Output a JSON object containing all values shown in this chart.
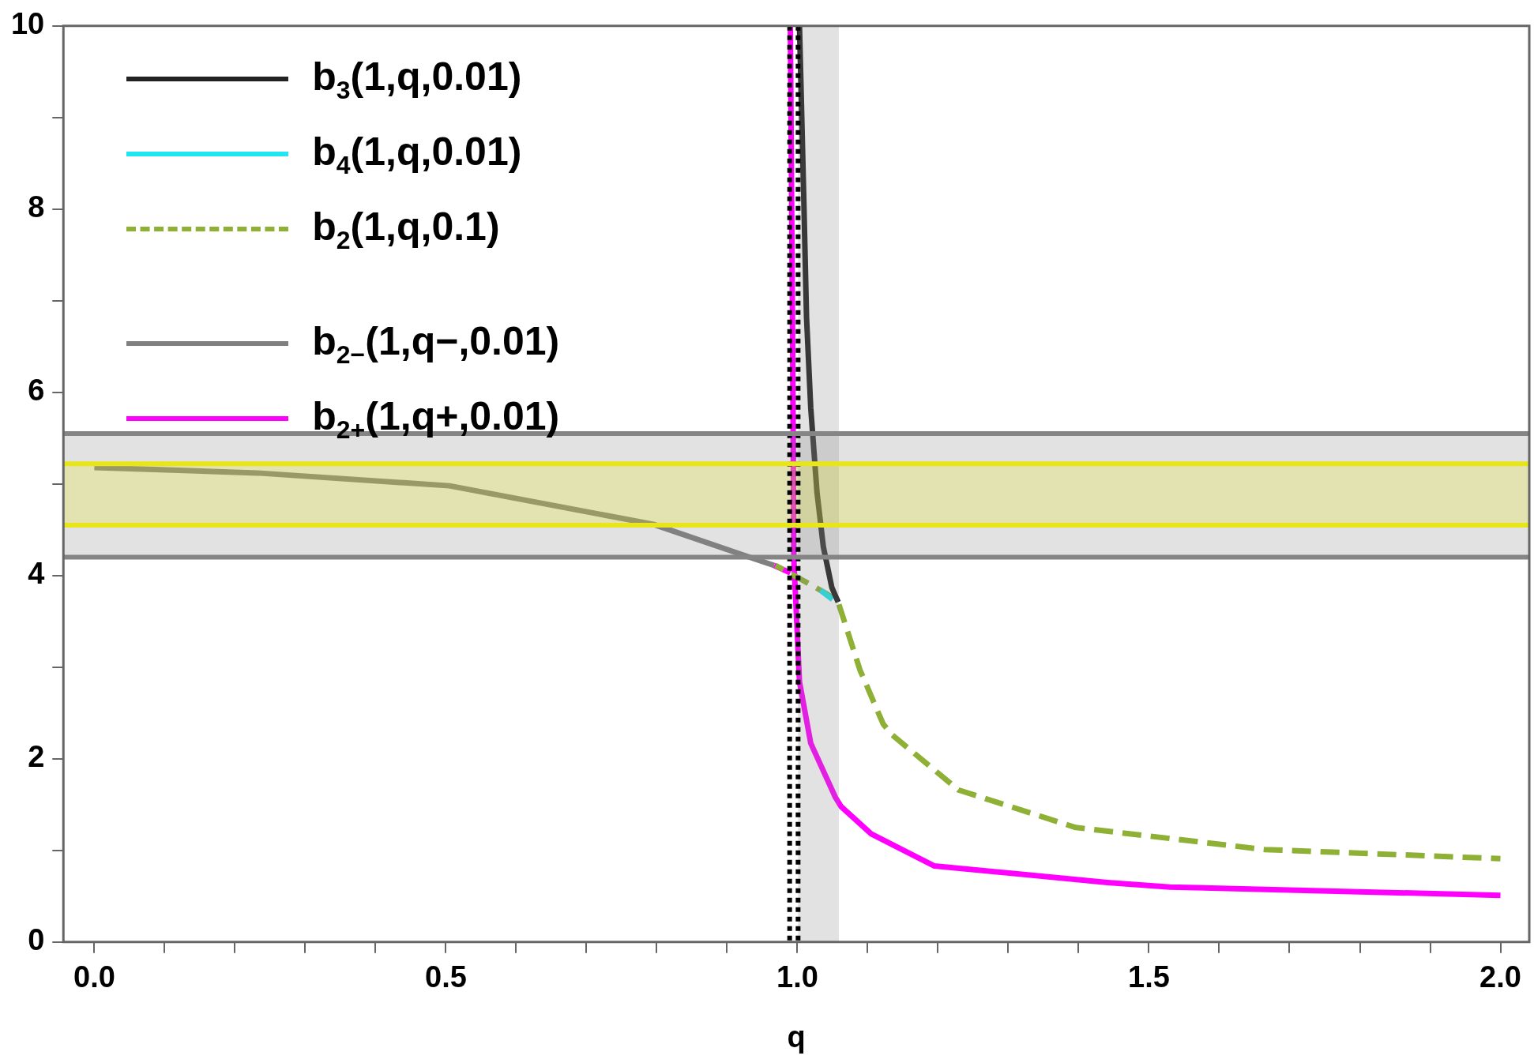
{
  "chart_data": {
    "type": "line",
    "xlabel": "q",
    "xlim": [
      -0.044,
      2.041
    ],
    "ylim": [
      0,
      10
    ],
    "xticks": [
      {
        "value": 0,
        "label": "0.0"
      },
      {
        "value": 0.1,
        "label": null
      },
      {
        "value": 0.2,
        "label": null
      },
      {
        "value": 0.3,
        "label": null
      },
      {
        "value": 0.4,
        "label": null
      },
      {
        "value": 0.5,
        "label": "0.5"
      },
      {
        "value": 0.6,
        "label": null
      },
      {
        "value": 0.7,
        "label": null
      },
      {
        "value": 0.8,
        "label": null
      },
      {
        "value": 0.9,
        "label": null
      },
      {
        "value": 1,
        "label": "1.0"
      },
      {
        "value": 1.1,
        "label": null
      },
      {
        "value": 1.2,
        "label": null
      },
      {
        "value": 1.3,
        "label": null
      },
      {
        "value": 1.4,
        "label": null
      },
      {
        "value": 1.5,
        "label": "1.5"
      },
      {
        "value": 1.6,
        "label": null
      },
      {
        "value": 1.7,
        "label": null
      },
      {
        "value": 1.8,
        "label": null
      },
      {
        "value": 1.9,
        "label": null
      },
      {
        "value": 2,
        "label": "2.0"
      }
    ],
    "yticks": [
      0,
      {
        "value": 1,
        "label": null
      },
      2,
      {
        "value": 3,
        "label": null
      },
      4,
      {
        "value": 5,
        "label": null
      },
      6,
      {
        "value": 7,
        "label": null
      },
      8,
      {
        "value": 9,
        "label": null
      },
      10
    ],
    "grid": false,
    "legend": "top left",
    "series": [
      {
        "name": "b$_{3}$(1,q,0.01)",
        "color": "#222222",
        "x": [
          1.003,
          1.009,
          1.013,
          1.019,
          1.028,
          1.037,
          1.049,
          1.058
        ],
        "values": [
          10,
          8.15,
          6.82,
          5.83,
          4.9,
          4.31,
          3.87,
          3.71
        ]
      },
      {
        "name": "b$_{4}$(1,q,0.01)",
        "color": "#1fe6f0",
        "x": [
          1.033,
          1.05
        ],
        "values": [
          3.84,
          3.74
        ]
      },
      {
        "name": "b$_{2}$(1,q,0.1)",
        "color": "#8db035",
        "line_style": "dashed",
        "x": [
          0.969,
          1.012,
          1.042,
          1.058,
          1.089,
          1.122,
          1.135,
          1.229,
          1.396,
          1.664,
          2.0
        ],
        "values": [
          4.11,
          3.93,
          3.8,
          3.71,
          2.97,
          2.38,
          2.26,
          1.66,
          1.25,
          1.01,
          0.91
        ]
      },
      {
        "name": "b$_{2−}$(1,q−,0.01)",
        "color": "#808080",
        "x": [
          0,
          0.232,
          0.505,
          0.795,
          0.936,
          0.967
        ],
        "values": [
          5.18,
          5.12,
          4.98,
          4.56,
          4.19,
          4.11
        ]
      },
      {
        "name": "b$_{2+}$(1,q+,0.01)",
        "color": "#ff00ff",
        "x": [
          0.99,
          0.993,
          0.995,
          1.003,
          1.019,
          1.054,
          1.062,
          1.105,
          1.195,
          1.441,
          1.53,
          2.0
        ],
        "values": [
          10,
          6.82,
          4.17,
          2.84,
          2.17,
          1.58,
          1.48,
          1.18,
          0.83,
          0.65,
          0.6,
          0.51
        ]
      },
      {
        "color": "#ff00ff",
        "x": [
          0.967,
          0.99
        ],
        "values": [
          4.11,
          4.03
        ]
      }
    ],
    "bands": [
      {
        "axis": "x",
        "from": 1.001,
        "to": 1.059,
        "color": "#858585"
      },
      {
        "axis": "y",
        "from": 4.2,
        "to": 5.55,
        "color": "#858585"
      },
      {
        "axis": "y",
        "from": 4.55,
        "to": 5.22,
        "color": "#e8e61a"
      }
    ],
    "ref_lines": [
      {
        "axis": "x",
        "value": 0.989,
        "color": "#000000",
        "line_style": "dotted"
      },
      {
        "axis": "x",
        "value": 1.001,
        "color": "#000000",
        "line_style": "dotted"
      },
      {
        "axis": "y",
        "value": 4.2,
        "color": "#858585"
      },
      {
        "axis": "y",
        "value": 5.55,
        "color": "#858585"
      },
      {
        "axis": "y",
        "value": 4.55,
        "color": "#e8e61a"
      },
      {
        "axis": "y",
        "value": 5.22,
        "color": "#e8e61a"
      }
    ]
  }
}
